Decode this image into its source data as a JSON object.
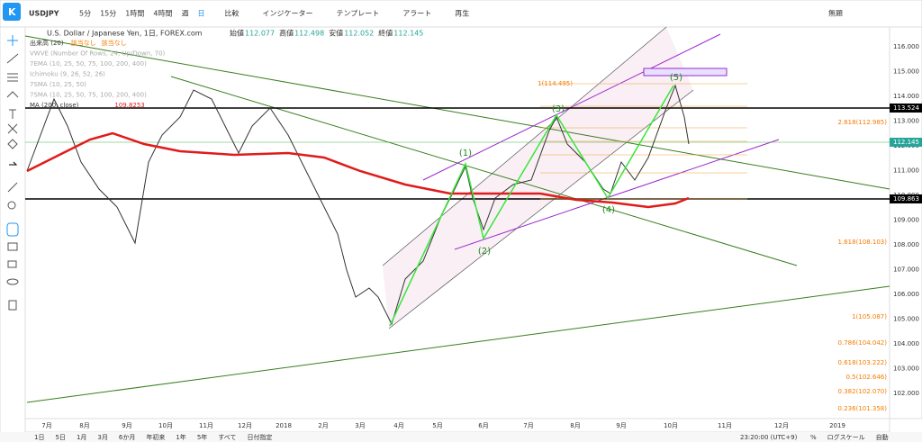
{
  "header": {
    "symbol": "USDJPY",
    "intervals": [
      "5分",
      "15分",
      "1時間",
      "4時間",
      "週",
      "日"
    ],
    "buttons": [
      "比較",
      "インジケーター",
      "テンプレート",
      "アラート",
      "再生"
    ],
    "layout_name": "無題"
  },
  "legend": {
    "title": "U.S. Dollar / Japanese Yen, 1日, FOREX.com",
    "ohlc": [
      {
        "label": "始値",
        "value": "112.077"
      },
      {
        "label": "高値",
        "value": "112.498"
      },
      {
        "label": "安値",
        "value": "112.052"
      },
      {
        "label": "終値",
        "value": "112.145"
      }
    ],
    "indicators": [
      "出来高 (20)",
      "VWVE (Number Of Rows, 24, Up/Down, 70)",
      "7EMA (10, 25, 50, 75, 100, 200, 400)",
      "Ichimoku (9, 26, 52, 26)",
      "7SMA (10, 25, 50)",
      "7SMA (10, 25, 50, 75, 100, 200, 400)",
      "MA (200, close)"
    ],
    "no_data": "該当なし",
    "ma_value": "109.8253"
  },
  "price_axis": {
    "ticks": [
      "116.000",
      "115.000",
      "114.000",
      "113.000",
      "112.000",
      "111.000",
      "110.000",
      "109.000",
      "108.000",
      "107.000",
      "106.000",
      "105.000",
      "104.000",
      "103.000",
      "102.000"
    ],
    "markers": [
      "113.524",
      "112.145",
      "109.863"
    ]
  },
  "fib_labels": [
    "1(114.495)",
    "2.618(112.985)",
    "1.618(108.103)",
    "1(105.087)",
    "0.786(104.042)",
    "0.618(103.222)",
    "0.5(102.646)",
    "0.382(102.070)",
    "0.236(101.358)"
  ],
  "waves": [
    "(1)",
    "(2)",
    "(3)",
    "(4)",
    "(5)"
  ],
  "time_axis": [
    "7月",
    "8月",
    "9月",
    "10月",
    "11月",
    "12月",
    "2018",
    "2月",
    "3月",
    "4月",
    "5月",
    "6月",
    "7月",
    "8月",
    "9月",
    "10月",
    "11月",
    "12月",
    "2019"
  ],
  "footer": {
    "ranges": [
      "1日",
      "5日",
      "1月",
      "3月",
      "6か月",
      "年初来",
      "1年",
      "5年",
      "すべて",
      "日付指定"
    ],
    "clock": "23:20:00 (UTC+9)",
    "options": [
      "%",
      "ログスケール",
      "自動"
    ]
  }
}
